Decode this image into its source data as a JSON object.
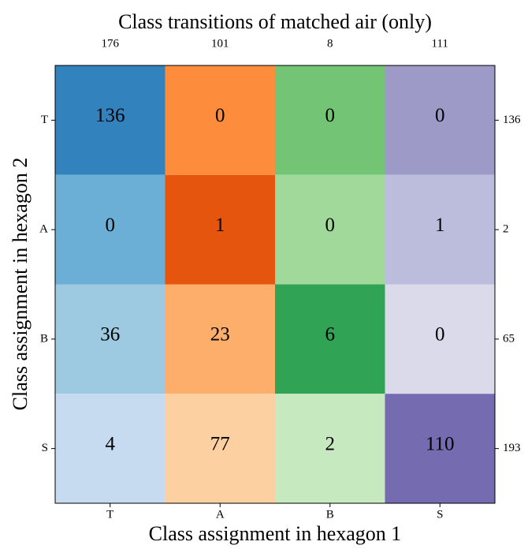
{
  "chart_data": {
    "type": "heatmap",
    "title": "Class transitions of matched air (only)",
    "xlabel": "Class assignment in hexagon 1",
    "ylabel": "Class assignment in hexagon 2",
    "x_categories": [
      "T",
      "A",
      "B",
      "S"
    ],
    "y_categories": [
      "T",
      "A",
      "B",
      "S"
    ],
    "values": [
      [
        136,
        0,
        0,
        0
      ],
      [
        0,
        1,
        0,
        1
      ],
      [
        36,
        23,
        6,
        0
      ],
      [
        4,
        77,
        2,
        110
      ]
    ],
    "colors": [
      [
        "#3182bd",
        "#fd8d3c",
        "#74c476",
        "#9e9ac8"
      ],
      [
        "#6baed6",
        "#e6550d",
        "#a1d99b",
        "#bcbddc"
      ],
      [
        "#9ecae1",
        "#fdae6b",
        "#31a354",
        "#dadaeb"
      ],
      [
        "#c6dbef",
        "#fdd0a2",
        "#c7e9c0",
        "#756bb1"
      ]
    ],
    "column_totals": [
      176,
      101,
      8,
      111
    ],
    "row_totals": [
      136,
      2,
      65,
      193
    ]
  }
}
